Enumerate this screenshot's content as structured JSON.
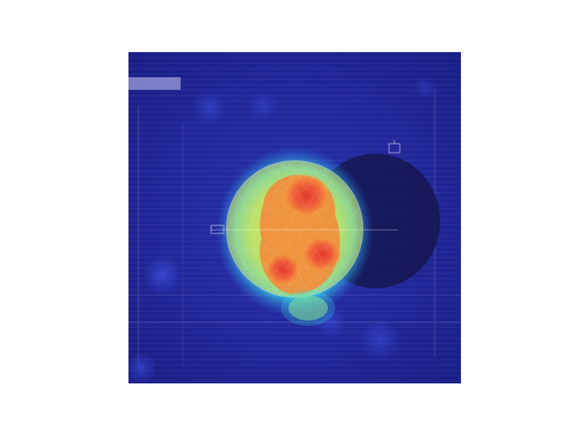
{
  "figure": {
    "kind": "heatmap-overlay",
    "subject": "circular-object",
    "colormap": "jet",
    "colors": {
      "background_low": "#1b1f8a",
      "background_mid": "#232aa0",
      "glow_cyan": "#38e0e6",
      "mid_yellow": "#e9e35a",
      "hot_orange": "#f28c3c",
      "hot_red": "#e23a2e",
      "shadow": "#14164f"
    }
  }
}
